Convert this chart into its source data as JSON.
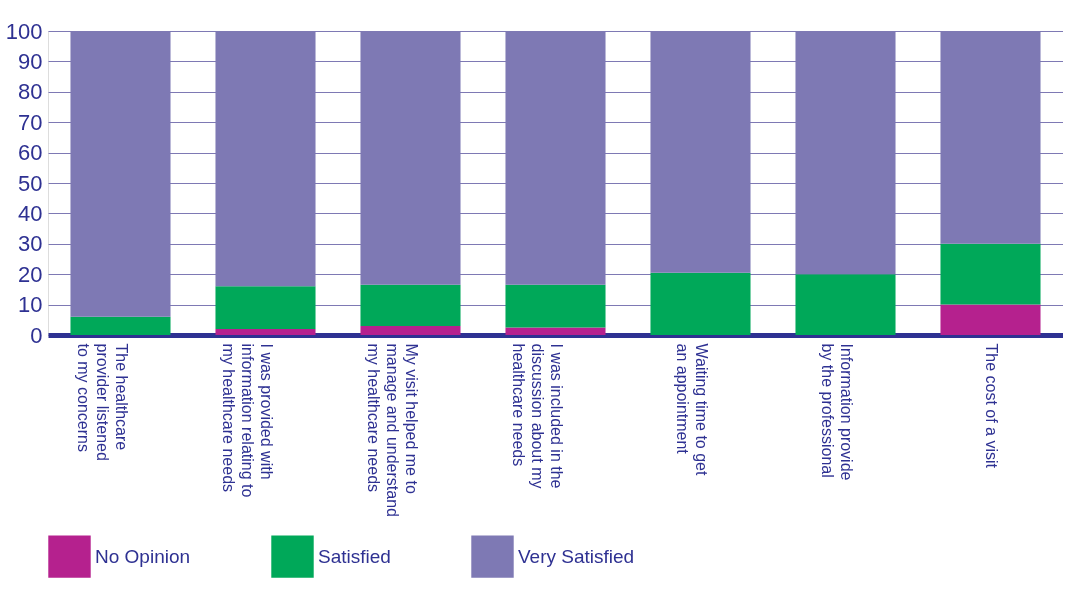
{
  "chart_data": {
    "type": "bar",
    "stacked": true,
    "categories": [
      "The healthcare\nprovider listened\nto my concerns",
      "I was provided with\ninformation relating to\nmy healthcare needs",
      "My visit helped me to\nmanage and understand\nmy healthcare  needs",
      "I was included in the\ndiscussion about my\nhealthcare needs",
      "Waiting time to get\nan appointment",
      "Information provide\nby the professional",
      "The cost of a visit"
    ],
    "series": [
      {
        "name": "No Opinion",
        "color": "#b5218e",
        "values": [
          0,
          2,
          3,
          2.5,
          0,
          0,
          10
        ]
      },
      {
        "name": "Satisfied",
        "color": "#00a859",
        "values": [
          6,
          14,
          13.5,
          14,
          20.5,
          20,
          20
        ]
      },
      {
        "name": "Very Satisfied",
        "color": "#7e79b4",
        "values": [
          94,
          84,
          83.5,
          83.5,
          79.5,
          80,
          70
        ]
      }
    ],
    "ylim": [
      0,
      100
    ],
    "yticks": [
      0,
      10,
      20,
      30,
      40,
      50,
      60,
      70,
      80,
      90,
      100
    ],
    "grid": "y",
    "legend": "bottom"
  }
}
